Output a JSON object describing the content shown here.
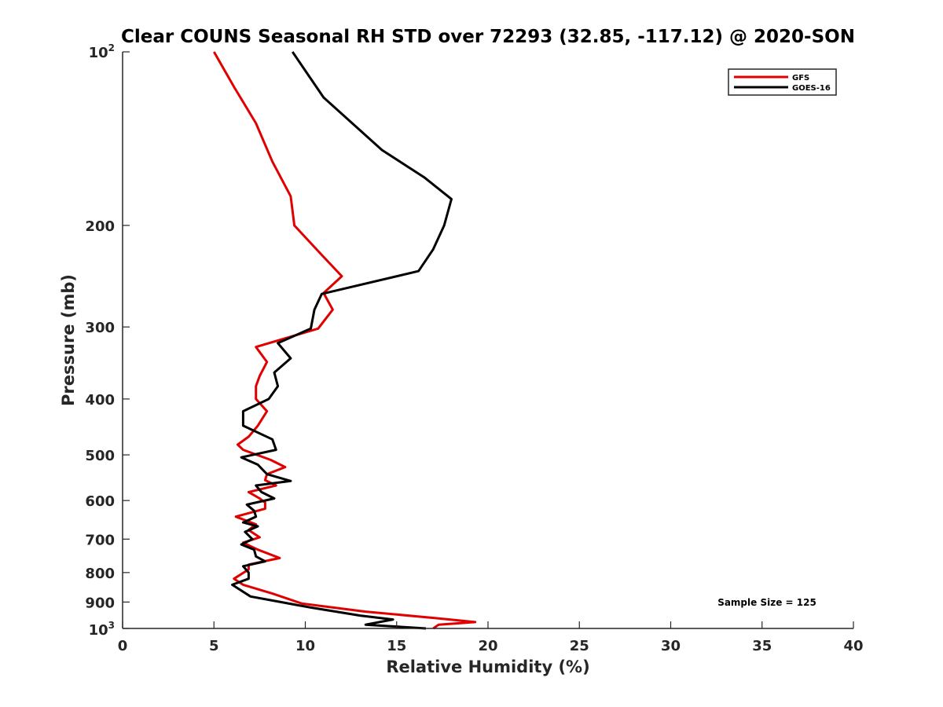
{
  "chart_data": {
    "type": "line",
    "title": "Clear COUNS Seasonal RH STD over 72293 (32.85, -117.12) @ 2020-SON",
    "xlabel": "Relative Humidity (%)",
    "ylabel": "Pressure (mb)",
    "xlim": [
      0,
      40
    ],
    "ylim": [
      100,
      1000
    ],
    "yscale": "log",
    "y_reversed": true,
    "xticks": [
      0,
      5,
      10,
      15,
      20,
      25,
      30,
      35,
      40
    ],
    "xtick_labels": [
      "0",
      "5",
      "10",
      "15",
      "20",
      "25",
      "30",
      "35",
      "40"
    ],
    "yticks": [
      200,
      300,
      400,
      500,
      600,
      700,
      800,
      900
    ],
    "ytick_labels": [
      "200",
      "300",
      "400",
      "500",
      "600",
      "700",
      "800",
      "900"
    ],
    "ytick_top": {
      "base": "10",
      "exp": "2"
    },
    "ytick_bottom": {
      "base": "10",
      "exp": "3"
    },
    "legend_position": "top-right",
    "annotation": "Sample Size = 125",
    "series": [
      {
        "name": "GFS",
        "color": "#e00000",
        "x": [
          5.0,
          6.1,
          7.3,
          8.2,
          9.2,
          9.4,
          10.9,
          12.0,
          11.0,
          11.5,
          10.7,
          7.3,
          7.9,
          7.5,
          7.3,
          7.3,
          7.9,
          7.4,
          6.9,
          6.3,
          6.6,
          8.1,
          8.9,
          7.9,
          7.8,
          8.4,
          6.9,
          7.5,
          7.8,
          7.8,
          6.2,
          7.3,
          6.9,
          7.5,
          6.6,
          7.4,
          8.6,
          6.9,
          6.9,
          6.1,
          6.6,
          8.2,
          9.8,
          13.3,
          17.2,
          19.3,
          17.3,
          17.0
        ],
        "y": [
          100,
          115,
          133,
          155,
          178,
          200,
          225,
          245,
          262,
          280,
          302,
          325,
          345,
          365,
          380,
          400,
          420,
          445,
          465,
          480,
          490,
          510,
          525,
          540,
          553,
          565,
          580,
          595,
          605,
          620,
          640,
          660,
          675,
          695,
          710,
          730,
          755,
          775,
          790,
          820,
          840,
          870,
          905,
          935,
          960,
          975,
          985,
          1000
        ]
      },
      {
        "name": "GOES-16",
        "color": "#000000",
        "x": [
          9.3,
          11.0,
          14.2,
          16.5,
          18.0,
          17.6,
          17.0,
          16.2,
          10.9,
          10.5,
          10.3,
          8.5,
          9.2,
          8.3,
          8.5,
          8.0,
          6.6,
          6.6,
          8.2,
          8.4,
          6.5,
          7.4,
          7.9,
          9.2,
          7.3,
          7.6,
          8.3,
          6.8,
          7.2,
          7.3,
          6.6,
          7.4,
          6.7,
          7.1,
          6.5,
          7.2,
          7.3,
          7.8,
          6.6,
          6.9,
          6.9,
          6.0,
          7.0,
          10.3,
          13.0,
          14.8,
          13.3,
          16.6
        ],
        "y": [
          100,
          120,
          148,
          165,
          180,
          200,
          220,
          240,
          263,
          280,
          302,
          320,
          340,
          360,
          380,
          400,
          420,
          445,
          470,
          490,
          505,
          520,
          540,
          555,
          565,
          580,
          595,
          610,
          625,
          640,
          655,
          665,
          680,
          700,
          715,
          730,
          750,
          765,
          780,
          800,
          820,
          840,
          880,
          920,
          950,
          965,
          985,
          1000
        ]
      }
    ]
  }
}
